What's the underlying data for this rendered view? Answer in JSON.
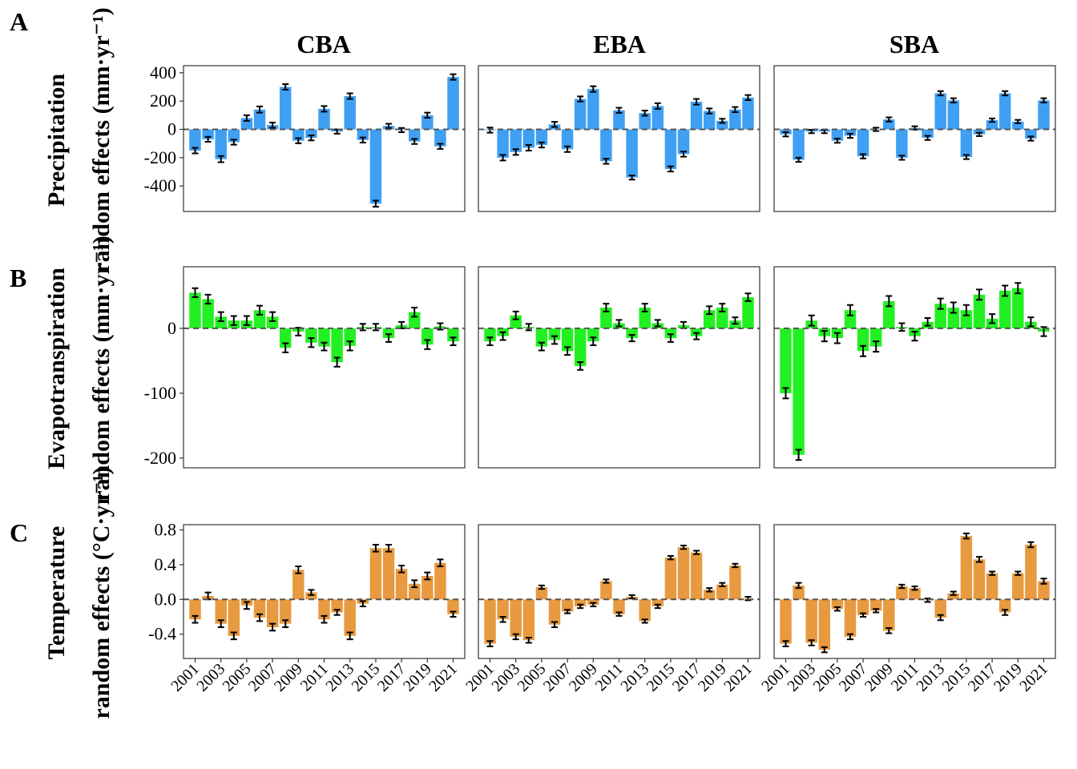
{
  "figure": {
    "columns": [
      "CBA",
      "EBA",
      "SBA"
    ],
    "colors": {
      "precipitation": "#3FA0F3",
      "evapotranspiration": "#23F022",
      "temperature": "#E89A40",
      "zero_line": "#555555",
      "frame": "#333333"
    }
  },
  "chart_data": [
    {
      "type": "bar",
      "panel": "A",
      "ylabel": [
        "Precipitation",
        "random effects (mm·yr⁻¹)"
      ],
      "ylim": [
        -580,
        450
      ],
      "yticks": [
        -400,
        -200,
        0,
        200,
        400
      ],
      "ytick_labels": [
        "-400",
        "-200",
        "0",
        "200",
        "400"
      ],
      "x": [
        2001,
        2002,
        2003,
        2004,
        2005,
        2006,
        2007,
        2008,
        2009,
        2010,
        2011,
        2012,
        2013,
        2014,
        2015,
        2016,
        2017,
        2018,
        2019,
        2020,
        2021
      ],
      "color": "#3FA0F3",
      "series": [
        {
          "facet": "CBA",
          "values": [
            -150,
            -70,
            -210,
            -90,
            80,
            140,
            30,
            300,
            -80,
            -60,
            145,
            -15,
            235,
            -75,
            -525,
            25,
            -5,
            -85,
            100,
            -120,
            370
          ],
          "errors": [
            20,
            18,
            22,
            18,
            20,
            22,
            18,
            20,
            18,
            18,
            20,
            15,
            20,
            18,
            22,
            15,
            15,
            18,
            18,
            18,
            20
          ]
        },
        {
          "facet": "EBA",
          "values": [
            -5,
            -200,
            -160,
            -130,
            -110,
            35,
            -140,
            215,
            285,
            -225,
            135,
            -340,
            115,
            165,
            -280,
            -175,
            195,
            130,
            60,
            140,
            225
          ],
          "errors": [
            18,
            20,
            20,
            20,
            18,
            18,
            20,
            18,
            20,
            18,
            18,
            15,
            18,
            20,
            18,
            18,
            20,
            18,
            15,
            18,
            18
          ]
        },
        {
          "facet": "SBA",
          "values": [
            -35,
            -215,
            -15,
            -15,
            -80,
            -45,
            -190,
            0,
            70,
            -200,
            10,
            -60,
            255,
            205,
            -195,
            -35,
            65,
            255,
            55,
            -65,
            205
          ],
          "errors": [
            15,
            15,
            12,
            12,
            15,
            15,
            15,
            12,
            15,
            15,
            12,
            15,
            15,
            15,
            15,
            12,
            12,
            15,
            12,
            15,
            15
          ]
        }
      ]
    },
    {
      "type": "bar",
      "panel": "B",
      "ylabel": [
        "Evapotranspiration",
        "random effects (mm·yr⁻¹)"
      ],
      "ylim": [
        -215,
        95
      ],
      "yticks": [
        -200,
        -100,
        0
      ],
      "ytick_labels": [
        "-200",
        "-100",
        "0"
      ],
      "x": [
        2001,
        2002,
        2003,
        2004,
        2005,
        2006,
        2007,
        2008,
        2009,
        2010,
        2011,
        2012,
        2013,
        2014,
        2015,
        2016,
        2017,
        2018,
        2019,
        2020,
        2021
      ],
      "color": "#23F022",
      "series": [
        {
          "facet": "CBA",
          "values": [
            55,
            45,
            18,
            12,
            12,
            28,
            18,
            -30,
            -5,
            -22,
            -28,
            -52,
            -27,
            2,
            2,
            -15,
            5,
            25,
            -25,
            3,
            -20
          ],
          "errors": [
            7,
            7,
            7,
            7,
            7,
            7,
            7,
            7,
            6,
            7,
            6,
            7,
            7,
            5,
            5,
            6,
            5,
            7,
            7,
            5,
            6
          ]
        },
        {
          "facet": "EBA",
          "values": [
            -20,
            -12,
            20,
            2,
            -28,
            -18,
            -35,
            -58,
            -20,
            32,
            8,
            -15,
            32,
            8,
            -15,
            5,
            -12,
            28,
            32,
            12,
            48
          ],
          "errors": [
            6,
            6,
            6,
            5,
            6,
            6,
            6,
            6,
            6,
            6,
            5,
            5,
            6,
            5,
            6,
            5,
            5,
            6,
            6,
            5,
            6
          ]
        },
        {
          "facet": "SBA",
          "values": [
            -100,
            -195,
            12,
            -12,
            -15,
            28,
            -35,
            -28,
            42,
            2,
            -12,
            10,
            38,
            32,
            28,
            52,
            15,
            58,
            62,
            10,
            -5
          ],
          "errors": [
            8,
            8,
            8,
            8,
            8,
            8,
            8,
            8,
            8,
            6,
            7,
            6,
            8,
            8,
            8,
            8,
            7,
            8,
            8,
            7,
            7
          ]
        }
      ]
    },
    {
      "type": "bar",
      "panel": "C",
      "ylabel": [
        "Temperature",
        "random effects (°C·yr⁻¹)"
      ],
      "ylim": [
        -0.68,
        0.86
      ],
      "yticks": [
        -0.4,
        0.0,
        0.4,
        0.8
      ],
      "ytick_labels": [
        "-0.4",
        "0.0",
        "0.4",
        "0.8"
      ],
      "x": [
        2001,
        2002,
        2003,
        2004,
        2005,
        2006,
        2007,
        2008,
        2009,
        2010,
        2011,
        2012,
        2013,
        2014,
        2015,
        2016,
        2017,
        2018,
        2019,
        2020,
        2021
      ],
      "x_tick_labels": [
        "2001",
        "2003",
        "2005",
        "2007",
        "2009",
        "2011",
        "2013",
        "2015",
        "2017",
        "2019",
        "2021"
      ],
      "color": "#E89A40",
      "series": [
        {
          "facet": "CBA",
          "values": [
            -0.23,
            0.04,
            -0.28,
            -0.42,
            -0.07,
            -0.21,
            -0.32,
            -0.28,
            0.34,
            0.08,
            -0.23,
            -0.15,
            -0.42,
            -0.05,
            0.59,
            0.59,
            0.35,
            0.18,
            0.27,
            0.42,
            -0.17
          ],
          "errors": [
            0.04,
            0.04,
            0.04,
            0.04,
            0.04,
            0.04,
            0.04,
            0.04,
            0.04,
            0.03,
            0.04,
            0.03,
            0.04,
            0.03,
            0.04,
            0.04,
            0.04,
            0.04,
            0.04,
            0.04,
            0.03
          ]
        },
        {
          "facet": "EBA",
          "values": [
            -0.51,
            -0.23,
            -0.43,
            -0.47,
            0.14,
            -0.29,
            -0.14,
            -0.08,
            -0.06,
            0.21,
            -0.17,
            0.03,
            -0.25,
            -0.08,
            0.48,
            0.6,
            0.54,
            0.11,
            0.17,
            0.39,
            0.01
          ],
          "errors": [
            0.03,
            0.03,
            0.03,
            0.03,
            0.02,
            0.03,
            0.02,
            0.02,
            0.02,
            0.02,
            0.02,
            0.02,
            0.02,
            0.02,
            0.02,
            0.02,
            0.02,
            0.02,
            0.02,
            0.02,
            0.02
          ]
        },
        {
          "facet": "SBA",
          "values": [
            -0.51,
            0.16,
            -0.5,
            -0.58,
            -0.11,
            -0.43,
            -0.18,
            -0.13,
            -0.36,
            0.15,
            0.13,
            -0.01,
            -0.21,
            0.07,
            0.73,
            0.46,
            0.3,
            -0.15,
            0.3,
            0.63,
            0.21
          ],
          "errors": [
            0.03,
            0.03,
            0.03,
            0.03,
            0.02,
            0.03,
            0.02,
            0.02,
            0.03,
            0.02,
            0.02,
            0.02,
            0.03,
            0.02,
            0.03,
            0.03,
            0.02,
            0.03,
            0.02,
            0.03,
            0.03
          ]
        }
      ]
    }
  ]
}
